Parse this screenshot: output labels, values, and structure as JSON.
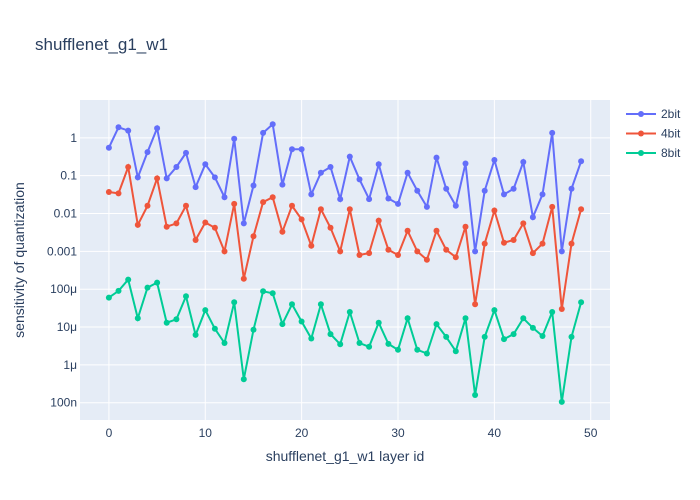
{
  "chart_data": {
    "type": "line",
    "title": "shufflenet_g1_w1",
    "xlabel": "shufflenet_g1_w1 layer id",
    "ylabel": "sensitivity of quantization",
    "yscale": "log",
    "xlim": [
      -3,
      52
    ],
    "ylim": [
      3.5e-08,
      10
    ],
    "x_ticks": [
      0,
      10,
      20,
      30,
      40,
      50
    ],
    "x_tick_labels": [
      "0",
      "10",
      "20",
      "30",
      "40",
      "50"
    ],
    "y_ticks": [
      1e-07,
      1e-06,
      1e-05,
      0.0001,
      0.001,
      0.01,
      0.1,
      1
    ],
    "y_tick_labels": [
      "100n",
      "1μ",
      "10μ",
      "100μ",
      "0.001",
      "0.01",
      "0.1",
      "1"
    ],
    "grid": true,
    "legend_position": "top-right",
    "x": [
      0,
      1,
      2,
      3,
      4,
      5,
      6,
      7,
      8,
      9,
      10,
      11,
      12,
      13,
      14,
      15,
      16,
      17,
      18,
      19,
      20,
      21,
      22,
      23,
      24,
      25,
      26,
      27,
      28,
      29,
      30,
      31,
      32,
      33,
      34,
      35,
      36,
      37,
      38,
      39,
      40,
      41,
      42,
      43,
      44,
      45,
      46,
      47,
      48,
      49
    ],
    "series": [
      {
        "name": "2bit",
        "color": "#636efa",
        "values": [
          0.55,
          1.9,
          1.55,
          0.09,
          0.42,
          1.8,
          0.085,
          0.17,
          0.4,
          0.05,
          0.2,
          0.09,
          0.027,
          0.95,
          0.0055,
          0.055,
          1.35,
          2.3,
          0.058,
          0.5,
          0.5,
          0.032,
          0.12,
          0.17,
          0.024,
          0.32,
          0.08,
          0.024,
          0.2,
          0.025,
          0.018,
          0.12,
          0.04,
          0.015,
          0.3,
          0.045,
          0.016,
          0.21,
          0.001,
          0.04,
          0.26,
          0.032,
          0.045,
          0.23,
          0.008,
          0.032,
          1.35,
          0.001,
          0.045,
          0.24
        ]
      },
      {
        "name": "4bit",
        "color": "#ef553b",
        "values": [
          0.037,
          0.034,
          0.17,
          0.005,
          0.016,
          0.085,
          0.0045,
          0.0055,
          0.016,
          0.002,
          0.0058,
          0.0042,
          0.001,
          0.018,
          0.00019,
          0.0025,
          0.02,
          0.027,
          0.0033,
          0.016,
          0.007,
          0.0014,
          0.013,
          0.0042,
          0.001,
          0.013,
          0.0008,
          0.0009,
          0.0065,
          0.0011,
          0.0008,
          0.0035,
          0.001,
          0.0006,
          0.0035,
          0.0011,
          0.0007,
          0.0045,
          4e-05,
          0.0016,
          0.012,
          0.0017,
          0.002,
          0.0055,
          0.0009,
          0.0016,
          0.015,
          3e-05,
          0.0016,
          0.013
        ]
      },
      {
        "name": "8bit",
        "color": "#00cc96",
        "values": [
          6e-05,
          9e-05,
          0.00018,
          1.7e-05,
          0.00011,
          0.00015,
          1.3e-05,
          1.6e-05,
          6.5e-05,
          6.2e-06,
          2.8e-05,
          9e-06,
          3.8e-06,
          4.5e-05,
          4.2e-07,
          8.5e-06,
          8.8e-05,
          7.8e-05,
          1.2e-05,
          4e-05,
          1.4e-05,
          5e-06,
          4e-05,
          6.5e-06,
          3.5e-06,
          2.5e-05,
          3.8e-06,
          3e-06,
          1.3e-05,
          3.6e-06,
          2.5e-06,
          1.7e-05,
          2.5e-06,
          2e-06,
          1.2e-05,
          5.5e-06,
          2.3e-06,
          1.7e-05,
          1.6e-07,
          5.5e-06,
          2.8e-05,
          4.8e-06,
          6.5e-06,
          1.7e-05,
          9.5e-06,
          5.8e-06,
          2.5e-05,
          1.05e-07,
          5.5e-06,
          4.5e-05
        ]
      }
    ]
  }
}
